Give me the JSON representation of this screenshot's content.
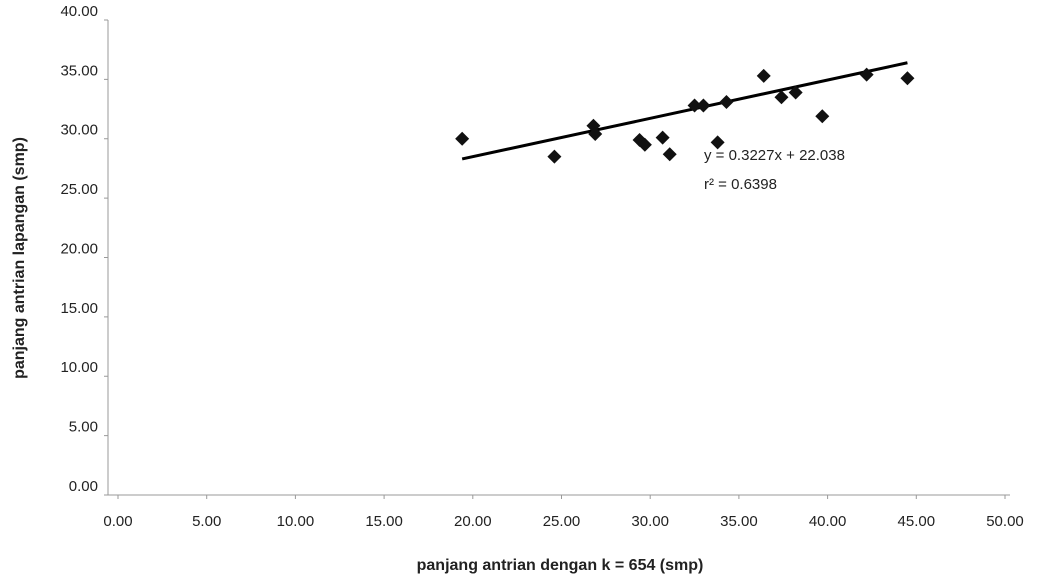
{
  "chart_data": {
    "type": "scatter",
    "xlabel": "panjang antrian dengan k = 654 (smp)",
    "ylabel": "panjang antrian lapangan (smp)",
    "x": [
      19.4,
      24.6,
      26.8,
      26.9,
      29.4,
      29.7,
      30.7,
      31.1,
      32.5,
      33.0,
      33.8,
      34.3,
      36.4,
      37.4,
      38.2,
      39.7,
      42.2,
      44.5
    ],
    "values": [
      30.0,
      28.5,
      31.1,
      30.4,
      29.9,
      29.5,
      30.1,
      28.7,
      32.8,
      32.8,
      29.7,
      33.1,
      35.3,
      33.5,
      33.9,
      31.9,
      35.4,
      35.1
    ],
    "color": "#111111",
    "xlim": [
      0,
      50
    ],
    "ylim": [
      0,
      40
    ],
    "xticks": [
      {
        "value": 0,
        "label": "0.00"
      },
      {
        "value": 5,
        "label": "5.00"
      },
      {
        "value": 10,
        "label": "10.00"
      },
      {
        "value": 15,
        "label": "15.00"
      },
      {
        "value": 20,
        "label": "20.00"
      },
      {
        "value": 25,
        "label": "25.00"
      },
      {
        "value": 30,
        "label": "30.00"
      },
      {
        "value": 35,
        "label": "35.00"
      },
      {
        "value": 40,
        "label": "40.00"
      },
      {
        "value": 45,
        "label": "45.00"
      },
      {
        "value": 50,
        "label": "50.00"
      }
    ],
    "yticks": [
      {
        "value": 0,
        "label": "0.00"
      },
      {
        "value": 5,
        "label": "5.00"
      },
      {
        "value": 10,
        "label": "10.00"
      },
      {
        "value": 15,
        "label": "15.00"
      },
      {
        "value": 20,
        "label": "20.00"
      },
      {
        "value": 25,
        "label": "25.00"
      },
      {
        "value": 30,
        "label": "30.00"
      },
      {
        "value": 35,
        "label": "35.00"
      },
      {
        "value": 40,
        "label": "40.00"
      }
    ],
    "trendline": {
      "equation": "y = 0.3227x + 22.038",
      "r2_label": "r² = 0.6398",
      "slope": 0.3227,
      "intercept": 22.038
    }
  }
}
